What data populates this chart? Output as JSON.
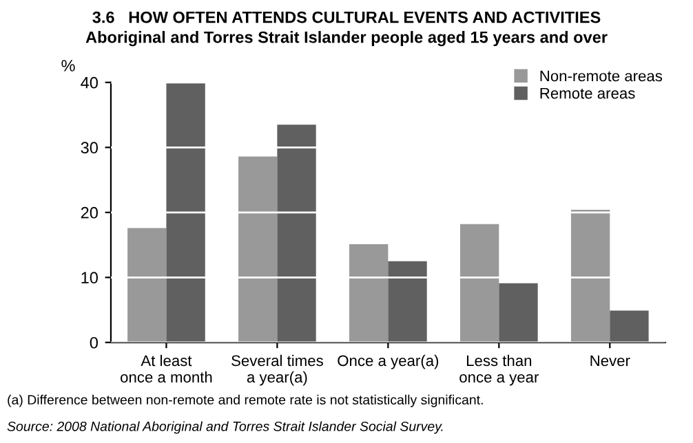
{
  "chart_data": {
    "type": "bar",
    "title": "3.6   HOW OFTEN ATTENDS CULTURAL EVENTS AND ACTIVITIES",
    "subtitle": "Aboriginal and Torres Strait Islander people aged 15 years and over",
    "ylabel": "%",
    "categories": [
      "At least\nonce a month",
      "Several times\na year(a)",
      "Once a year(a)",
      "Less than\nonce a year",
      "Never"
    ],
    "series": [
      {
        "name": "Non-remote areas",
        "color": "#999999",
        "values": [
          17.6,
          28.6,
          15.1,
          18.2,
          20.4
        ]
      },
      {
        "name": "Remote areas",
        "color": "#606060",
        "values": [
          40.0,
          33.5,
          12.5,
          9.1,
          4.9
        ]
      }
    ],
    "ylim": [
      0,
      40
    ],
    "yticks": [
      0,
      10,
      20,
      30,
      40
    ],
    "grid": "y",
    "legend": "top right",
    "annotations": [
      "(a) Difference between non-remote and remote rate is not statistically significant.",
      "Source: 2008 National Aboriginal and Torres Strait Islander Social Survey."
    ]
  }
}
